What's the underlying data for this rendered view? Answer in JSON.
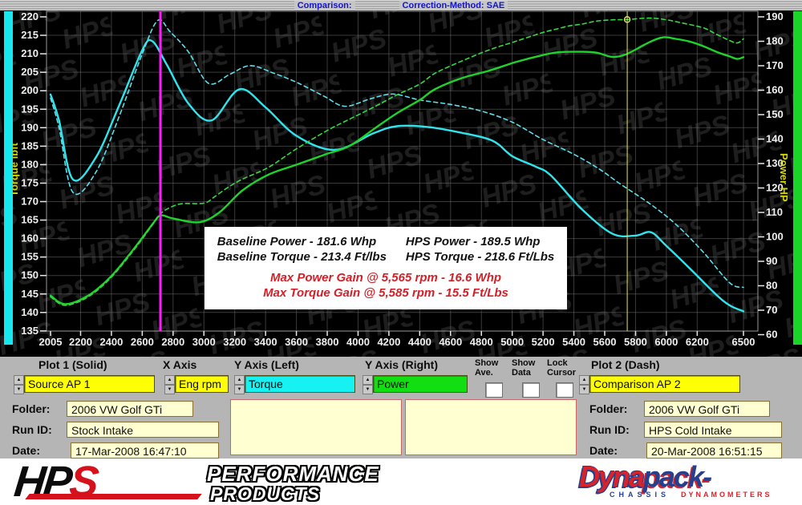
{
  "title_bar": {
    "comparison_label": "Comparison:",
    "correction_label": "Correction-Method: SAE"
  },
  "chart_data": {
    "type": "line",
    "x_axis": {
      "label": "Eng rpm",
      "range": [
        2005,
        6500
      ],
      "ticks": [
        2005,
        2200,
        2400,
        2600,
        2800,
        3000,
        3200,
        3400,
        3600,
        3800,
        4000,
        4200,
        4400,
        4600,
        4800,
        5000,
        5200,
        5400,
        5600,
        5800,
        6000,
        6200,
        6500
      ]
    },
    "y_left": {
      "label": "Torque lbft",
      "range": [
        135,
        220
      ],
      "ticks": [
        220,
        215,
        210,
        205,
        200,
        195,
        190,
        185,
        180,
        175,
        170,
        165,
        160,
        155,
        150,
        145,
        140,
        135
      ],
      "color": "#d6d600"
    },
    "y_right": {
      "label": "Power HP",
      "range": [
        60,
        190
      ],
      "ticks": [
        190,
        180,
        170,
        160,
        150,
        140,
        130,
        120,
        110,
        100,
        90,
        80,
        70,
        60
      ],
      "color": "#d6d600"
    },
    "grid": true,
    "legend_position": "none",
    "series": [
      {
        "name": "Baseline Torque (Stock Intake)",
        "axis": "left",
        "style": "solid",
        "color": "#30e4ee",
        "width": 2.4,
        "points": [
          [
            2005,
            199
          ],
          [
            2060,
            192
          ],
          [
            2150,
            176
          ],
          [
            2300,
            182
          ],
          [
            2450,
            196
          ],
          [
            2600,
            211
          ],
          [
            2665,
            213.4
          ],
          [
            2760,
            207
          ],
          [
            2900,
            196.5
          ],
          [
            3050,
            192
          ],
          [
            3230,
            200.4
          ],
          [
            3400,
            195.5
          ],
          [
            3600,
            187.8
          ],
          [
            3850,
            184
          ],
          [
            4100,
            188.5
          ],
          [
            4250,
            190.4
          ],
          [
            4450,
            190.2
          ],
          [
            4650,
            188.8
          ],
          [
            4870,
            186.5
          ],
          [
            5000,
            182.3
          ],
          [
            5150,
            179.5
          ],
          [
            5250,
            177.1
          ],
          [
            5450,
            168
          ],
          [
            5650,
            161.3
          ],
          [
            5800,
            160.8
          ],
          [
            5900,
            161.7
          ],
          [
            6000,
            158
          ],
          [
            6150,
            152
          ],
          [
            6324,
            144.8
          ],
          [
            6411,
            141.9
          ],
          [
            6500,
            140.3
          ]
        ]
      },
      {
        "name": "HPS Torque (Comparison)",
        "axis": "left",
        "style": "dash",
        "color": "#5cdde8",
        "width": 1.6,
        "points": [
          [
            2005,
            198
          ],
          [
            2060,
            190
          ],
          [
            2150,
            172.5
          ],
          [
            2300,
            178
          ],
          [
            2450,
            193
          ],
          [
            2600,
            210
          ],
          [
            2700,
            219
          ],
          [
            2780,
            216
          ],
          [
            2900,
            210.5
          ],
          [
            3030,
            202
          ],
          [
            3170,
            204.5
          ],
          [
            3300,
            206.8
          ],
          [
            3450,
            204.8
          ],
          [
            3600,
            202.3
          ],
          [
            3780,
            198.5
          ],
          [
            3914,
            195.8
          ],
          [
            4080,
            197.8
          ],
          [
            4226,
            199.1
          ],
          [
            4400,
            197.5
          ],
          [
            4600,
            196.3
          ],
          [
            4800,
            194.5
          ],
          [
            5000,
            191.5
          ],
          [
            5200,
            186.8
          ],
          [
            5400,
            182.8
          ],
          [
            5565,
            178.8
          ],
          [
            5700,
            174.8
          ],
          [
            5900,
            169.2
          ],
          [
            6063,
            163.8
          ],
          [
            6240,
            156.3
          ],
          [
            6411,
            148
          ],
          [
            6500,
            146.8
          ]
        ]
      },
      {
        "name": "Baseline Power (Stock Intake)",
        "axis": "right",
        "style": "solid",
        "color": "#1ed42a",
        "width": 2.4,
        "points": [
          [
            2005,
            76
          ],
          [
            2100,
            72.5
          ],
          [
            2250,
            76
          ],
          [
            2400,
            84
          ],
          [
            2550,
            95.5
          ],
          [
            2670,
            105.5
          ],
          [
            2720,
            108.8
          ],
          [
            2800,
            107.5
          ],
          [
            2970,
            106
          ],
          [
            3100,
            110
          ],
          [
            3250,
            119
          ],
          [
            3420,
            125.5
          ],
          [
            3600,
            129.5
          ],
          [
            3800,
            134
          ],
          [
            3940,
            137
          ],
          [
            4100,
            144
          ],
          [
            4250,
            150.5
          ],
          [
            4400,
            156
          ],
          [
            4502,
            160.5
          ],
          [
            4676,
            165
          ],
          [
            4851,
            168
          ],
          [
            5023,
            171.5
          ],
          [
            5194,
            174.3
          ],
          [
            5300,
            175.5
          ],
          [
            5450,
            175.7
          ],
          [
            5550,
            175.3
          ],
          [
            5650,
            173.6
          ],
          [
            5746,
            174.9
          ],
          [
            5889,
            179.6
          ],
          [
            5980,
            181.6
          ],
          [
            6060,
            181
          ],
          [
            6150,
            179.9
          ],
          [
            6240,
            178
          ],
          [
            6324,
            175.7
          ],
          [
            6411,
            173.8
          ],
          [
            6460,
            172.8
          ],
          [
            6500,
            173.5
          ]
        ]
      },
      {
        "name": "HPS Power (Comparison)",
        "axis": "right",
        "style": "dash",
        "color": "#35d83f",
        "width": 1.6,
        "points": [
          [
            2005,
            75.5
          ],
          [
            2100,
            72
          ],
          [
            2250,
            75.5
          ],
          [
            2400,
            83.5
          ],
          [
            2550,
            95
          ],
          [
            2650,
            103.5
          ],
          [
            2700,
            108
          ],
          [
            2750,
            111
          ],
          [
            2850,
            113.5
          ],
          [
            3000,
            113.8
          ],
          [
            3073,
            116.6
          ],
          [
            3160,
            120.4
          ],
          [
            3250,
            123.6
          ],
          [
            3420,
            128.5
          ],
          [
            3600,
            136
          ],
          [
            3800,
            143.5
          ],
          [
            3940,
            148
          ],
          [
            4100,
            153
          ],
          [
            4250,
            158
          ],
          [
            4400,
            162.5
          ],
          [
            4502,
            167
          ],
          [
            4676,
            172
          ],
          [
            4851,
            176.5
          ],
          [
            5023,
            180
          ],
          [
            5194,
            183.5
          ],
          [
            5300,
            185.2
          ],
          [
            5369,
            186.3
          ],
          [
            5450,
            187
          ],
          [
            5541,
            188.2
          ],
          [
            5650,
            188.8
          ],
          [
            5746,
            188.9
          ],
          [
            5889,
            189.5
          ],
          [
            6000,
            188.8
          ],
          [
            6100,
            187.5
          ],
          [
            6240,
            185.5
          ],
          [
            6320,
            183
          ],
          [
            6411,
            180.3
          ],
          [
            6460,
            179.3
          ],
          [
            6500,
            181
          ]
        ]
      }
    ],
    "cursors": [
      {
        "name": "magenta-cursor",
        "rpm": 2718,
        "color": "#ff1aff",
        "width": 3
      },
      {
        "name": "yellow-cursor",
        "rpm": 5746,
        "color": "#e8e565",
        "width": 1,
        "marker_series": 3,
        "marker_power": 188.9
      }
    ],
    "annotation": {
      "baseline_power": "Baseline Power - 181.6 Whp",
      "hps_power": "HPS Power - 189.5 Whp",
      "baseline_torque": "Baseline Torque - 213.4 Ft/lbs",
      "hps_torque": "HPS Torque - 218.6 Ft/Lbs",
      "gain_power": "Max Power Gain @ 5,565 rpm - 16.6 Whp",
      "gain_torque": "Max Torque Gain @ 5,585 rpm - 15.5 Ft/Lbs"
    },
    "watermark_text": "HPS"
  },
  "controls": {
    "plot1_label": "Plot 1 (Solid)",
    "plot1_value": "Source AP 1",
    "xaxis_label": "X Axis",
    "xaxis_value": "Eng rpm",
    "yleft_label": "Y Axis (Left)",
    "yleft_value": "Torque",
    "yright_label": "Y Axis (Right)",
    "yright_value": "Power",
    "plot2_label": "Plot 2 (Dash)",
    "plot2_value": "Comparison AP 2",
    "checkboxes": [
      {
        "line1": "Show",
        "line2": "Ave.",
        "checked": false
      },
      {
        "line1": "Show",
        "line2": "Data",
        "checked": false
      },
      {
        "line1": "Lock",
        "line2": "Cursor",
        "checked": false
      }
    ]
  },
  "info_left": {
    "folder_label": "Folder:",
    "folder_value": "2006 VW Golf GTi",
    "runid_label": "Run ID:",
    "runid_value": "Stock Intake",
    "date_label": "Date:",
    "date_value": "17-Mar-2008  16:47:10"
  },
  "info_right": {
    "folder_label": "Folder:",
    "folder_value": "2006 VW Golf GTi",
    "runid_label": "Run ID:",
    "runid_value": "HPS Cold Intake",
    "date_label": "Date:",
    "date_value": "20-Mar-2008  16:51:15"
  },
  "logos": {
    "hps_hp": "HP",
    "hps_s": "S",
    "hps_line1": "PERFORMANCE",
    "hps_line2": "PRODUCTS",
    "dyna_part1": "Dyna",
    "dyna_part2": "pack-",
    "dyna_sub1": "CHASSIS",
    "dyna_sub2": "DYNAMOMETERS"
  },
  "colors": {
    "torque_accent": "#16f2f2",
    "power_accent": "#12df12",
    "select_yellow": "#ffff05",
    "cursor_magenta": "#ff1aff",
    "cursor_yellow": "#e8e565"
  }
}
